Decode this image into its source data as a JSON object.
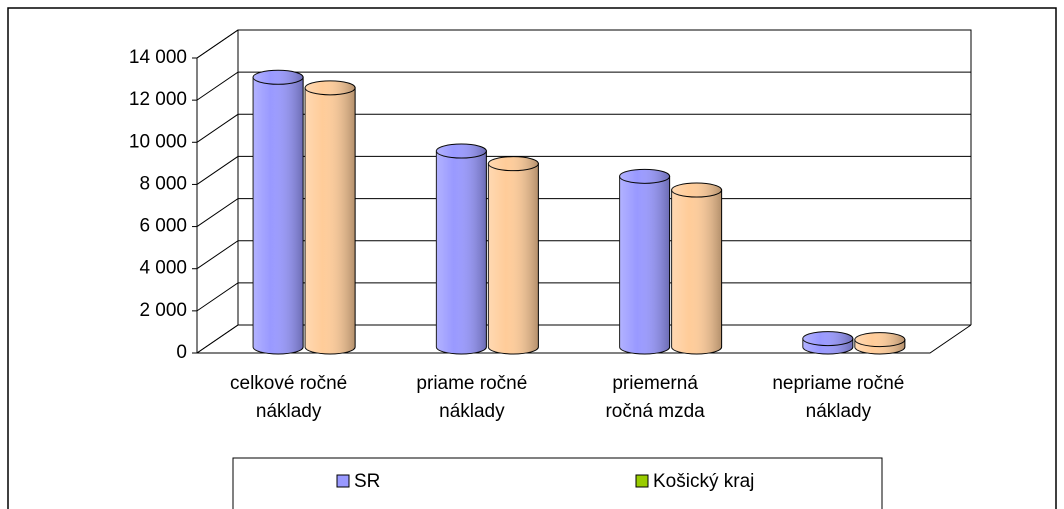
{
  "chart_data": {
    "type": "bar3d_cylinder",
    "categories": [
      [
        "celkové ročné",
        "náklady"
      ],
      [
        "priame ročné",
        "náklady"
      ],
      [
        "priemerná",
        "ročná mzda"
      ],
      [
        "nepriame ročné",
        "náklady"
      ]
    ],
    "series": [
      {
        "name": "SR",
        "color": "#9999ff",
        "legend_color": "#9999ff",
        "values": [
          12800,
          9300,
          8100,
          400
        ]
      },
      {
        "name": "Košický kraj",
        "color": "#ffcc99",
        "legend_color": "#99cc00",
        "values": [
          12300,
          8700,
          7450,
          350
        ]
      }
    ],
    "ylim": [
      0,
      14000
    ],
    "yticks": [
      {
        "value": 0,
        "label": "0"
      },
      {
        "value": 2000,
        "label": "2 000"
      },
      {
        "value": 4000,
        "label": "4 000"
      },
      {
        "value": 6000,
        "label": "6 000"
      },
      {
        "value": 8000,
        "label": "8 000"
      },
      {
        "value": 10000,
        "label": "10 000"
      },
      {
        "value": 12000,
        "label": "12 000"
      },
      {
        "value": 14000,
        "label": "14 000"
      }
    ],
    "grid": true
  }
}
